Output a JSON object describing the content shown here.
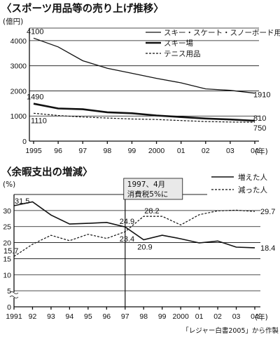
{
  "chart_data": [
    {
      "type": "line",
      "title": "〈スポーツ用品等の売り上げ推移〉",
      "ylabel": "(億円)",
      "xlabel": "(年)",
      "x": [
        1995,
        1996,
        1997,
        1998,
        1999,
        2000,
        2001,
        2002,
        2003,
        2004
      ],
      "x_tick_labels": [
        "1995",
        "96",
        "97",
        "98",
        "99",
        "2000",
        "01",
        "02",
        "03",
        "04"
      ],
      "ylim": [
        0,
        4500
      ],
      "y_ticks": [
        0,
        1000,
        2000,
        3000,
        4000
      ],
      "legend_position": "top-right",
      "series": [
        {
          "name": "スキー・スケート・スノーボード用品",
          "style": "solid-thin",
          "values": [
            4100,
            3750,
            3200,
            2900,
            2700,
            2500,
            2320,
            2080,
            2020,
            1910
          ],
          "labels": {
            "first": "4100",
            "last": "1910"
          }
        },
        {
          "name": "スキー場",
          "style": "solid-thick",
          "values": [
            1490,
            1300,
            1270,
            1150,
            1110,
            1020,
            960,
            900,
            860,
            810
          ],
          "labels": {
            "first": "1490",
            "last": "810"
          }
        },
        {
          "name": "テニス用品",
          "style": "dashed",
          "values": [
            1110,
            1020,
            960,
            920,
            880,
            860,
            820,
            780,
            760,
            750
          ],
          "labels": {
            "first": "1110",
            "last": "750"
          }
        }
      ]
    },
    {
      "type": "line",
      "title": "〈余暇支出の増減〉",
      "ylabel": "(%)",
      "xlabel": "(年)",
      "x": [
        1991,
        1992,
        1993,
        1994,
        1995,
        1996,
        1997,
        1998,
        1999,
        2000,
        2001,
        2002,
        2003,
        2004
      ],
      "x_tick_labels": [
        "1991",
        "92",
        "93",
        "94",
        "95",
        "96",
        "97",
        "98",
        "99",
        "2000",
        "01",
        "02",
        "03",
        "04"
      ],
      "ylim": [
        0,
        35
      ],
      "y_ticks": [
        0,
        5,
        10,
        15,
        20,
        25,
        30,
        35
      ],
      "axis_break": true,
      "legend_position": "top-right",
      "annotation": {
        "lines": [
          "1997、4月",
          "消費税5%に"
        ],
        "x": 1997
      },
      "series": [
        {
          "name": "増えた人",
          "style": "solid",
          "values": [
            31.5,
            32.7,
            28.6,
            25.8,
            26.0,
            26.3,
            24.9,
            20.9,
            22.3,
            21.2,
            19.9,
            20.5,
            18.6,
            18.4
          ],
          "labels": [
            {
              "x": 1991,
              "text": "31.5"
            },
            {
              "x": 1997,
              "text": "24.9"
            },
            {
              "x": 1998,
              "text": "20.9"
            },
            {
              "x": 2004,
              "text": "18.4"
            }
          ]
        },
        {
          "name": "減った人",
          "style": "dashed",
          "values": [
            15.7,
            19.5,
            22.3,
            20.6,
            22.6,
            21.3,
            23.4,
            28.2,
            28.2,
            25.5,
            28.7,
            29.9,
            30.1,
            29.7
          ],
          "labels": [
            {
              "x": 1991,
              "text": "15.7"
            },
            {
              "x": 1997,
              "text": "23.4"
            },
            {
              "x": 1998,
              "text": "28.2"
            },
            {
              "x": 2004,
              "text": "29.7"
            }
          ]
        }
      ]
    }
  ],
  "source_note": "「レジャー白書2005」から作製"
}
